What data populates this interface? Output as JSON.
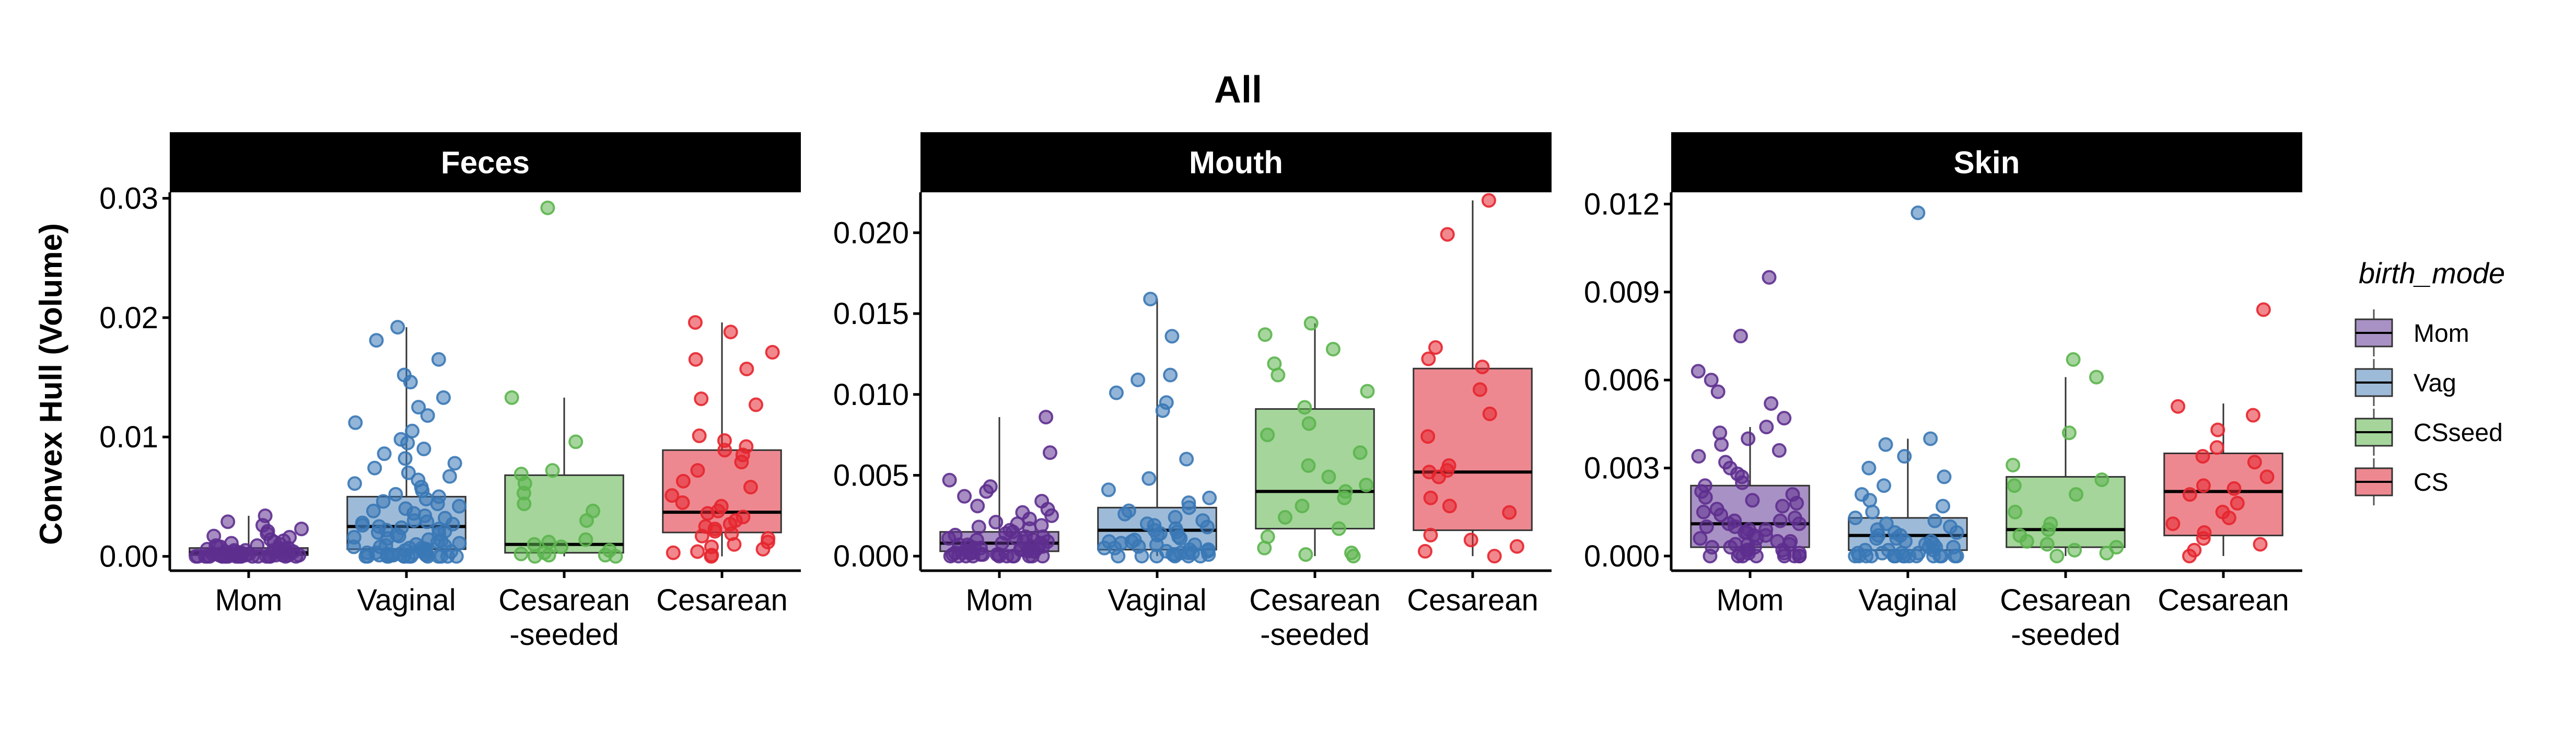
{
  "chart_data": {
    "type": "box",
    "title": "All",
    "ylabel": "Convex Hull (Volume)",
    "xlabel": "",
    "categories": [
      "Mom",
      "Vaginal",
      "Cesarean\n-seeded",
      "Cesarean"
    ],
    "legend": {
      "title": "birth_mode",
      "placement": "right",
      "entries": [
        {
          "label": "Mom",
          "fill": "#a891c4",
          "point": "#5e2f8f"
        },
        {
          "label": "Vag",
          "fill": "#9dbbd8",
          "point": "#3a78b6"
        },
        {
          "label": "CSseed",
          "fill": "#a5d59b",
          "point": "#5cb54e"
        },
        {
          "label": "CS",
          "fill": "#ee8890",
          "point": "#e6262f"
        }
      ]
    },
    "facets": [
      {
        "name": "Feces",
        "ylim": [
          -0.0012,
          0.0305
        ],
        "yticks": [
          0,
          0.01,
          0.02,
          0.03
        ],
        "ytick_labels": [
          "0.00",
          "0.01",
          "0.02",
          "0.03"
        ],
        "boxes": [
          {
            "q1": 0.0001,
            "median": 0.0003,
            "q3": 0.0007,
            "lo": 0.0,
            "hi": 0.0034
          },
          {
            "q1": 0.0006,
            "median": 0.0025,
            "q3": 0.005,
            "lo": 0.0,
            "hi": 0.0192
          },
          {
            "q1": 0.0003,
            "median": 0.001,
            "q3": 0.0068,
            "lo": 0.0,
            "hi": 0.0133
          },
          {
            "q1": 0.002,
            "median": 0.0037,
            "q3": 0.0089,
            "lo": 0.0,
            "hi": 0.0196
          }
        ],
        "points": [
          [
            0.0034,
            0.0029,
            0.0026,
            0.0023,
            0.0021,
            0.0019,
            0.0017,
            0.0016,
            0.0014,
            0.0013,
            0.0012,
            0.0011,
            0.001,
            0.0009,
            0.0009,
            0.0008,
            0.0008,
            0.0007,
            0.0007,
            0.0006,
            0.0006,
            0.0005,
            0.0005,
            0.0005,
            0.0004,
            0.0004,
            0.0004,
            0.0003,
            0.0003,
            0.0003,
            0.0003,
            0.0002,
            0.0002,
            0.0002,
            0.0002,
            0.0002,
            0.0001,
            0.0001,
            0.0001,
            0.0001,
            0.0001,
            0.0001,
            0.0001,
            0.0,
            0.0,
            0.0,
            0.0,
            0.0,
            0.0,
            0.0,
            0.0,
            0.0,
            0.0,
            0.0,
            0.0,
            0.0,
            0.0,
            0.0,
            0.0,
            0.0,
            0.0,
            0.0,
            0.0,
            0.0,
            0.0,
            0.0
          ],
          [
            0.0192,
            0.0181,
            0.0165,
            0.0152,
            0.0146,
            0.0133,
            0.0125,
            0.0118,
            0.0112,
            0.0105,
            0.0098,
            0.0095,
            0.009,
            0.0086,
            0.0082,
            0.0078,
            0.0074,
            0.007,
            0.0067,
            0.0064,
            0.0061,
            0.0058,
            0.0055,
            0.0052,
            0.005,
            0.0048,
            0.0046,
            0.0044,
            0.0042,
            0.004,
            0.0038,
            0.0036,
            0.0034,
            0.0032,
            0.003,
            0.0029,
            0.0028,
            0.0027,
            0.0026,
            0.0025,
            0.0024,
            0.0023,
            0.0022,
            0.0021,
            0.002,
            0.0019,
            0.0018,
            0.0017,
            0.0016,
            0.0015,
            0.0014,
            0.0013,
            0.0012,
            0.0011,
            0.001,
            0.0009,
            0.0009,
            0.0008,
            0.0008,
            0.0007,
            0.0007,
            0.0006,
            0.0006,
            0.0005,
            0.0005,
            0.0004,
            0.0004,
            0.0003,
            0.0003,
            0.0003,
            0.0002,
            0.0002,
            0.0002,
            0.0001,
            0.0001,
            0.0001,
            0.0001,
            0.0,
            0.0,
            0.0,
            0.0,
            0.0,
            0.0,
            0.0,
            0.0,
            0.0,
            0.0,
            0.0,
            0.0,
            0.0
          ],
          [
            0.0292,
            0.0133,
            0.0096,
            0.0072,
            0.0069,
            0.0061,
            0.0053,
            0.0044,
            0.0038,
            0.003,
            0.0014,
            0.0012,
            0.001,
            0.0008,
            0.0005,
            0.0003,
            0.0002,
            0.0001,
            0.0001,
            0.0,
            0.0
          ],
          [
            0.0196,
            0.0188,
            0.0171,
            0.0165,
            0.0157,
            0.0132,
            0.0127,
            0.0101,
            0.0097,
            0.0092,
            0.0089,
            0.0085,
            0.0079,
            0.0072,
            0.0063,
            0.0058,
            0.0051,
            0.0045,
            0.0042,
            0.0038,
            0.0036,
            0.0033,
            0.003,
            0.0027,
            0.0025,
            0.0023,
            0.0021,
            0.0019,
            0.0017,
            0.0015,
            0.0012,
            0.001,
            0.0008,
            0.0006,
            0.0004,
            0.0003,
            0.0001,
            0.0
          ]
        ]
      },
      {
        "name": "Mouth",
        "ylim": [
          -0.0009,
          0.0225
        ],
        "yticks": [
          0,
          0.005,
          0.01,
          0.015,
          0.02
        ],
        "ytick_labels": [
          "0.000",
          "0.005",
          "0.010",
          "0.015",
          "0.020"
        ],
        "boxes": [
          {
            "q1": 0.0003,
            "median": 0.0008,
            "q3": 0.0015,
            "lo": 0.0,
            "hi": 0.0086
          },
          {
            "q1": 0.0004,
            "median": 0.0016,
            "q3": 0.003,
            "lo": 0.0,
            "hi": 0.0159
          },
          {
            "q1": 0.0017,
            "median": 0.004,
            "q3": 0.0091,
            "lo": 0.0,
            "hi": 0.0144
          },
          {
            "q1": 0.0016,
            "median": 0.0052,
            "q3": 0.0116,
            "lo": 0.0,
            "hi": 0.022
          }
        ],
        "points": [
          [
            0.0086,
            0.0064,
            0.0047,
            0.0043,
            0.004,
            0.0037,
            0.0034,
            0.0031,
            0.0029,
            0.0027,
            0.0025,
            0.0023,
            0.0021,
            0.002,
            0.0019,
            0.0018,
            0.0017,
            0.0016,
            0.0015,
            0.0014,
            0.0013,
            0.0012,
            0.0012,
            0.0011,
            0.0011,
            0.001,
            0.001,
            0.0009,
            0.0009,
            0.0008,
            0.0008,
            0.0007,
            0.0007,
            0.0006,
            0.0006,
            0.0006,
            0.0005,
            0.0005,
            0.0005,
            0.0004,
            0.0004,
            0.0004,
            0.0003,
            0.0003,
            0.0003,
            0.0003,
            0.0002,
            0.0002,
            0.0002,
            0.0002,
            0.0001,
            0.0001,
            0.0001,
            0.0001,
            0.0001,
            0.0,
            0.0,
            0.0,
            0.0,
            0.0,
            0.0,
            0.0,
            0.0,
            0.0,
            0.0,
            0.0
          ],
          [
            0.0159,
            0.0136,
            0.0112,
            0.0109,
            0.0101,
            0.0095,
            0.009,
            0.006,
            0.0048,
            0.0041,
            0.0036,
            0.0033,
            0.003,
            0.0028,
            0.0026,
            0.0024,
            0.0022,
            0.002,
            0.0019,
            0.0018,
            0.0017,
            0.0016,
            0.0015,
            0.0014,
            0.0013,
            0.0012,
            0.0011,
            0.001,
            0.0009,
            0.0009,
            0.0008,
            0.0007,
            0.0007,
            0.0006,
            0.0005,
            0.0005,
            0.0004,
            0.0004,
            0.0003,
            0.0003,
            0.0002,
            0.0002,
            0.0002,
            0.0001,
            0.0001,
            0.0001,
            0.0,
            0.0,
            0.0,
            0.0,
            0.0,
            0.0
          ],
          [
            0.0144,
            0.0137,
            0.0128,
            0.0119,
            0.0112,
            0.0102,
            0.0092,
            0.0082,
            0.0075,
            0.0064,
            0.0056,
            0.0049,
            0.0044,
            0.004,
            0.0036,
            0.0031,
            0.0024,
            0.0017,
            0.0012,
            0.0005,
            0.0002,
            0.0001,
            0.0
          ],
          [
            0.022,
            0.0199,
            0.0129,
            0.0122,
            0.0117,
            0.0103,
            0.0088,
            0.0074,
            0.0056,
            0.0053,
            0.0052,
            0.0049,
            0.0036,
            0.0031,
            0.0027,
            0.0013,
            0.001,
            0.0006,
            0.0003,
            0.0
          ]
        ]
      },
      {
        "name": "Skin",
        "ylim": [
          -0.0005,
          0.0124
        ],
        "yticks": [
          0,
          0.003,
          0.006,
          0.009,
          0.012
        ],
        "ytick_labels": [
          "0.000",
          "0.003",
          "0.006",
          "0.009",
          "0.012"
        ],
        "boxes": [
          {
            "q1": 0.0003,
            "median": 0.0011,
            "q3": 0.0024,
            "lo": 0.0,
            "hi": 0.0044
          },
          {
            "q1": 0.0002,
            "median": 0.0007,
            "q3": 0.0013,
            "lo": 0.0,
            "hi": 0.004
          },
          {
            "q1": 0.0003,
            "median": 0.0009,
            "q3": 0.0027,
            "lo": 0.0,
            "hi": 0.0061
          },
          {
            "q1": 0.0007,
            "median": 0.0022,
            "q3": 0.0035,
            "lo": 0.0,
            "hi": 0.0052
          }
        ],
        "points": [
          [
            0.0095,
            0.0075,
            0.0063,
            0.006,
            0.0056,
            0.0052,
            0.0047,
            0.0044,
            0.0042,
            0.004,
            0.0038,
            0.0036,
            0.0034,
            0.0032,
            0.003,
            0.0028,
            0.0027,
            0.0025,
            0.0024,
            0.0022,
            0.0021,
            0.002,
            0.0019,
            0.0018,
            0.0017,
            0.0016,
            0.0015,
            0.0014,
            0.0013,
            0.0012,
            0.0012,
            0.0011,
            0.0011,
            0.001,
            0.001,
            0.0009,
            0.0009,
            0.0008,
            0.0008,
            0.0007,
            0.0007,
            0.0006,
            0.0006,
            0.0005,
            0.0005,
            0.0004,
            0.0004,
            0.0004,
            0.0003,
            0.0003,
            0.0003,
            0.0002,
            0.0002,
            0.0002,
            0.0001,
            0.0001,
            0.0001,
            0.0001,
            0.0,
            0.0,
            0.0,
            0.0,
            0.0,
            0.0,
            0.0,
            0.0
          ],
          [
            0.0117,
            0.004,
            0.0038,
            0.0034,
            0.003,
            0.0027,
            0.0024,
            0.0021,
            0.0019,
            0.0017,
            0.0015,
            0.0013,
            0.0012,
            0.0011,
            0.001,
            0.0009,
            0.0008,
            0.0008,
            0.0007,
            0.0007,
            0.0006,
            0.0006,
            0.0005,
            0.0005,
            0.0004,
            0.0004,
            0.0003,
            0.0003,
            0.0003,
            0.0002,
            0.0002,
            0.0002,
            0.0001,
            0.0001,
            0.0001,
            0.0001,
            0.0,
            0.0,
            0.0,
            0.0,
            0.0,
            0.0,
            0.0,
            0.0,
            0.0,
            0.0,
            0.0,
            0.0,
            0.0,
            0.0,
            0.0,
            0.0
          ],
          [
            0.0067,
            0.0061,
            0.0042,
            0.0031,
            0.0026,
            0.0024,
            0.0021,
            0.0015,
            0.0011,
            0.0009,
            0.0007,
            0.0005,
            0.0004,
            0.0003,
            0.0002,
            0.0001,
            0.0
          ],
          [
            0.0084,
            0.0051,
            0.0048,
            0.0043,
            0.0037,
            0.0034,
            0.0032,
            0.0027,
            0.0024,
            0.0023,
            0.0021,
            0.0018,
            0.0015,
            0.0013,
            0.0011,
            0.0008,
            0.0006,
            0.0004,
            0.0002,
            0.0
          ]
        ]
      }
    ]
  }
}
